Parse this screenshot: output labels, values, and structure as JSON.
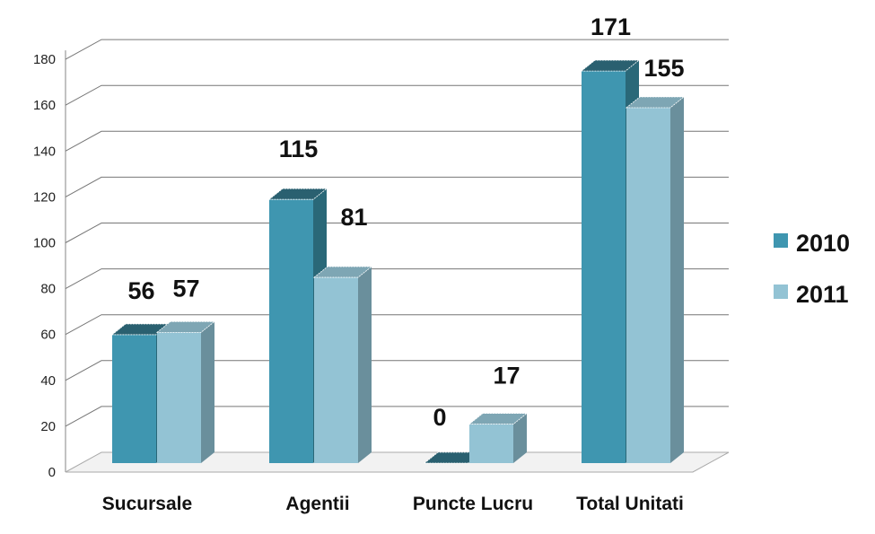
{
  "chart_data": {
    "type": "bar",
    "categories": [
      "Sucursale",
      "Agentii",
      "Puncte Lucru",
      "Total Unitati"
    ],
    "series": [
      {
        "name": "2010",
        "values": [
          56,
          115,
          0,
          171
        ]
      },
      {
        "name": "2011",
        "values": [
          57,
          81,
          17,
          155
        ]
      }
    ],
    "y_ticks": [
      "0",
      "20",
      "40",
      "60",
      "80",
      "100",
      "120",
      "140",
      "160",
      "180"
    ],
    "ylim": [
      0,
      180
    ],
    "grid": true,
    "legend": "right",
    "colors": {
      "series_2010": {
        "front": "#3f96b0",
        "side": "#2a6878",
        "top": "#2a6070"
      },
      "series_2011": {
        "front": "#93c3d4",
        "side": "#6a8f9c",
        "top": "#7ea6b4"
      },
      "grid": "#777777"
    }
  }
}
